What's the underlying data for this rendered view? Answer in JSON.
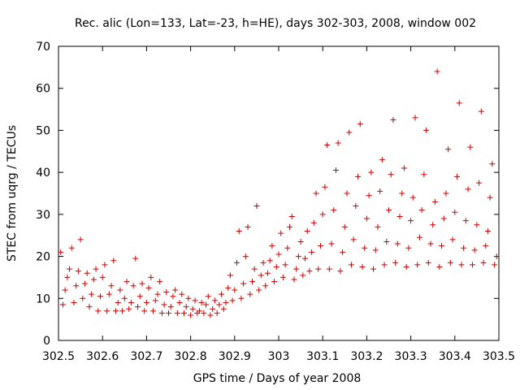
{
  "chart_data": {
    "type": "scatter",
    "title": "Rec. alic (Lon=133, Lat=-23, h=HE), days 302-303, 2008, window 002",
    "xlabel": "GPS time / Days of year 2008",
    "ylabel": "STEC from uqrg / TECUs",
    "xlim": [
      302.5,
      303.5
    ],
    "ylim": [
      0,
      70
    ],
    "xticks": [
      302.5,
      302.6,
      302.7,
      302.8,
      302.9,
      303,
      303.1,
      303.2,
      303.3,
      303.4,
      303.5
    ],
    "xtick_labels": [
      "302.5",
      "302.6",
      "302.7",
      "302.8",
      "302.9",
      "303",
      "303.1",
      "303.2",
      "303.3",
      "303.4",
      "303.5"
    ],
    "yticks": [
      0,
      10,
      20,
      30,
      40,
      50,
      60,
      70
    ],
    "ytick_labels": [
      "0",
      "10",
      "20",
      "30",
      "40",
      "50",
      "60",
      "70"
    ],
    "grid": false,
    "marker": "+",
    "color": "#cc0000",
    "series": [
      {
        "name": "STEC",
        "points": [
          [
            302.505,
            21
          ],
          [
            302.51,
            8.5
          ],
          [
            302.515,
            12
          ],
          [
            302.52,
            15
          ],
          [
            302.525,
            17
          ],
          [
            302.53,
            22
          ],
          [
            302.535,
            9
          ],
          [
            302.54,
            13
          ],
          [
            302.545,
            16.5
          ],
          [
            302.55,
            24
          ],
          [
            302.555,
            10
          ],
          [
            302.56,
            13.5
          ],
          [
            302.565,
            16
          ],
          [
            302.57,
            8
          ],
          [
            302.575,
            11
          ],
          [
            302.58,
            14.5
          ],
          [
            302.585,
            17
          ],
          [
            302.59,
            7
          ],
          [
            302.595,
            10.5
          ],
          [
            302.6,
            15
          ],
          [
            302.605,
            18
          ],
          [
            302.61,
            7
          ],
          [
            302.615,
            11
          ],
          [
            302.62,
            13
          ],
          [
            302.625,
            19
          ],
          [
            302.63,
            7
          ],
          [
            302.635,
            9
          ],
          [
            302.64,
            12
          ],
          [
            302.645,
            7
          ],
          [
            302.65,
            10
          ],
          [
            302.655,
            14
          ],
          [
            302.66,
            7.5
          ],
          [
            302.665,
            9
          ],
          [
            302.67,
            13
          ],
          [
            302.675,
            19.5
          ],
          [
            302.68,
            8
          ],
          [
            302.685,
            10.5
          ],
          [
            302.69,
            13.5
          ],
          [
            302.695,
            7
          ],
          [
            302.7,
            9
          ],
          [
            302.705,
            12.5
          ],
          [
            302.71,
            15
          ],
          [
            302.715,
            7
          ],
          [
            302.72,
            9.5
          ],
          [
            302.725,
            11
          ],
          [
            302.73,
            14
          ],
          [
            302.735,
            6.5
          ],
          [
            302.74,
            8.5
          ],
          [
            302.745,
            11.5
          ],
          [
            302.75,
            6.5
          ],
          [
            302.755,
            8
          ],
          [
            302.76,
            10.5
          ],
          [
            302.765,
            12
          ],
          [
            302.77,
            6.5
          ],
          [
            302.775,
            9
          ],
          [
            302.78,
            11
          ],
          [
            302.785,
            6.5
          ],
          [
            302.79,
            8
          ],
          [
            302.795,
            10
          ],
          [
            302.8,
            6
          ],
          [
            302.805,
            7.5
          ],
          [
            302.81,
            9.5
          ],
          [
            302.815,
            6.5
          ],
          [
            302.82,
            7
          ],
          [
            302.825,
            9
          ],
          [
            302.83,
            6.5
          ],
          [
            302.835,
            8.5
          ],
          [
            302.84,
            10.5
          ],
          [
            302.845,
            6
          ],
          [
            302.85,
            7.5
          ],
          [
            302.855,
            9.5
          ],
          [
            302.86,
            6.5
          ],
          [
            302.865,
            8.5
          ],
          [
            302.87,
            11
          ],
          [
            302.875,
            7.5
          ],
          [
            302.88,
            9
          ],
          [
            302.885,
            12.5
          ],
          [
            302.89,
            15.5
          ],
          [
            302.895,
            9.5
          ],
          [
            302.9,
            12
          ],
          [
            302.905,
            18.5
          ],
          [
            302.91,
            26
          ],
          [
            302.915,
            10
          ],
          [
            302.92,
            13.5
          ],
          [
            302.925,
            20
          ],
          [
            302.93,
            27
          ],
          [
            302.935,
            11
          ],
          [
            302.94,
            14
          ],
          [
            302.945,
            17
          ],
          [
            302.95,
            32
          ],
          [
            302.955,
            12
          ],
          [
            302.96,
            15.5
          ],
          [
            302.965,
            18.5
          ],
          [
            302.97,
            13
          ],
          [
            302.975,
            16
          ],
          [
            302.98,
            19
          ],
          [
            302.985,
            22.5
          ],
          [
            302.99,
            14
          ],
          [
            302.995,
            17.5
          ],
          [
            303.0,
            20.5
          ],
          [
            303.005,
            25.5
          ],
          [
            303.01,
            15
          ],
          [
            303.015,
            18
          ],
          [
            303.02,
            22
          ],
          [
            303.025,
            27
          ],
          [
            303.03,
            29.5
          ],
          [
            303.035,
            14.5
          ],
          [
            303.04,
            17
          ],
          [
            303.045,
            20
          ],
          [
            303.05,
            23.5
          ],
          [
            303.055,
            15.5
          ],
          [
            303.06,
            19.5
          ],
          [
            303.065,
            26
          ],
          [
            303.07,
            16.5
          ],
          [
            303.075,
            21
          ],
          [
            303.08,
            28
          ],
          [
            303.085,
            35
          ],
          [
            303.09,
            17
          ],
          [
            303.095,
            22.5
          ],
          [
            303.1,
            30
          ],
          [
            303.105,
            36.5
          ],
          [
            303.11,
            46.5
          ],
          [
            303.115,
            17
          ],
          [
            303.12,
            23
          ],
          [
            303.125,
            31
          ],
          [
            303.13,
            40.5
          ],
          [
            303.135,
            47
          ],
          [
            303.14,
            16.5
          ],
          [
            303.145,
            21
          ],
          [
            303.15,
            27
          ],
          [
            303.155,
            35
          ],
          [
            303.16,
            49.5
          ],
          [
            303.165,
            18
          ],
          [
            303.17,
            24
          ],
          [
            303.175,
            32
          ],
          [
            303.18,
            39
          ],
          [
            303.185,
            51.5
          ],
          [
            303.19,
            17.5
          ],
          [
            303.195,
            22
          ],
          [
            303.2,
            29
          ],
          [
            303.205,
            34.5
          ],
          [
            303.21,
            40
          ],
          [
            303.215,
            17
          ],
          [
            303.22,
            21.5
          ],
          [
            303.225,
            27
          ],
          [
            303.23,
            35.5
          ],
          [
            303.235,
            43
          ],
          [
            303.24,
            18
          ],
          [
            303.245,
            23.5
          ],
          [
            303.25,
            31
          ],
          [
            303.255,
            39.5
          ],
          [
            303.26,
            52.5
          ],
          [
            303.265,
            18.5
          ],
          [
            303.27,
            23
          ],
          [
            303.275,
            29.5
          ],
          [
            303.28,
            35
          ],
          [
            303.285,
            41
          ],
          [
            303.29,
            17.5
          ],
          [
            303.295,
            22
          ],
          [
            303.3,
            28.5
          ],
          [
            303.305,
            34
          ],
          [
            303.31,
            53
          ],
          [
            303.315,
            18
          ],
          [
            303.32,
            24.5
          ],
          [
            303.325,
            31
          ],
          [
            303.33,
            39.5
          ],
          [
            303.335,
            50
          ],
          [
            303.34,
            18.5
          ],
          [
            303.345,
            23
          ],
          [
            303.35,
            27.5
          ],
          [
            303.355,
            33
          ],
          [
            303.36,
            64
          ],
          [
            303.365,
            17.5
          ],
          [
            303.37,
            22.5
          ],
          [
            303.375,
            29
          ],
          [
            303.38,
            35
          ],
          [
            303.385,
            45.5
          ],
          [
            303.39,
            18.5
          ],
          [
            303.395,
            24
          ],
          [
            303.4,
            30.5
          ],
          [
            303.405,
            39
          ],
          [
            303.41,
            56.5
          ],
          [
            303.415,
            18
          ],
          [
            303.42,
            22
          ],
          [
            303.425,
            28.5
          ],
          [
            303.43,
            36
          ],
          [
            303.435,
            46
          ],
          [
            303.44,
            18
          ],
          [
            303.445,
            21.5
          ],
          [
            303.45,
            27.5
          ],
          [
            303.455,
            37.5
          ],
          [
            303.46,
            54.5
          ],
          [
            303.465,
            18.5
          ],
          [
            303.47,
            22.5
          ],
          [
            303.475,
            26
          ],
          [
            303.48,
            34
          ],
          [
            303.485,
            42
          ],
          [
            303.49,
            18
          ],
          [
            303.495,
            20
          ]
        ]
      }
    ]
  }
}
